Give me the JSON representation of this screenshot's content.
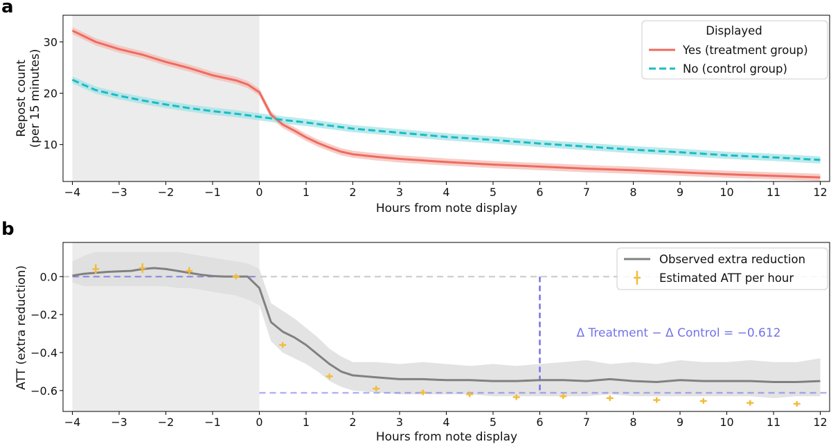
{
  "colors": {
    "treatment": "#ee6b5f",
    "treatment_band": "#f4bcb6",
    "control": "#18bcc4",
    "control_band": "#a6e3e5",
    "observed": "#808080",
    "observed_band": "#dedede",
    "estimate": "#f2bc3c",
    "reference": "#7272e8",
    "zero_line": "#c8c8c8",
    "pretreatment_shade": "#ececec"
  },
  "chart_data": [
    {
      "panel_label": "a",
      "type": "line",
      "xlabel": "Hours from note display",
      "ylabel": "Repost count",
      "ylabel_line2": "(per 15 minutes)",
      "xlim": [
        -4.2,
        12.2
      ],
      "ylim": [
        2.8,
        35.2
      ],
      "xticks": [
        -4,
        -3,
        -2,
        -1,
        0,
        1,
        2,
        3,
        4,
        5,
        6,
        7,
        8,
        9,
        10,
        11,
        12
      ],
      "xtick_labels": [
        "−4",
        "−3",
        "−2",
        "−1",
        "0",
        "1",
        "2",
        "3",
        "4",
        "5",
        "6",
        "7",
        "8",
        "9",
        "10",
        "11",
        "12"
      ],
      "yticks": [
        10,
        20,
        30
      ],
      "ytick_labels": [
        "10",
        "20",
        "30"
      ],
      "grid": false,
      "shaded_region": [
        -4,
        0
      ],
      "legend": {
        "title": "Displayed",
        "placement": "top-right",
        "entries": [
          "Yes (treatment group)",
          "No (control group)"
        ]
      },
      "series": [
        {
          "name": "Yes (treatment group)",
          "style": "solid",
          "x": [
            -4,
            -3.5,
            -3,
            -2.5,
            -2,
            -1.5,
            -1,
            -0.5,
            -0.25,
            0,
            0.25,
            0.5,
            0.75,
            1,
            1.25,
            1.5,
            1.75,
            2,
            2.5,
            3,
            3.5,
            4,
            5,
            6,
            7,
            8,
            9,
            10,
            11,
            12
          ],
          "y": [
            32.2,
            30.0,
            28.6,
            27.5,
            26.1,
            24.9,
            23.5,
            22.5,
            21.7,
            20.2,
            15.8,
            13.9,
            12.7,
            11.4,
            10.3,
            9.4,
            8.6,
            8.1,
            7.6,
            7.2,
            6.9,
            6.6,
            6.1,
            5.7,
            5.3,
            5.0,
            4.6,
            4.2,
            3.9,
            3.6
          ],
          "band_width": 1.4
        },
        {
          "name": "No (control group)",
          "style": "dashed",
          "x": [
            -4,
            -3.5,
            -3,
            -2.5,
            -2,
            -1.5,
            -1,
            -0.5,
            0,
            0.5,
            1,
            1.5,
            2,
            3,
            4,
            5,
            6,
            7,
            8,
            9,
            10,
            11,
            12
          ],
          "y": [
            22.6,
            20.6,
            19.5,
            18.6,
            17.8,
            17.1,
            16.5,
            16.0,
            15.4,
            14.8,
            14.3,
            13.7,
            13.1,
            12.3,
            11.5,
            10.9,
            10.2,
            9.6,
            9.0,
            8.5,
            7.9,
            7.5,
            7.0
          ],
          "band_width": 1.4
        }
      ]
    },
    {
      "panel_label": "b",
      "type": "line",
      "xlabel": "Hours from note display",
      "ylabel": "ATT (extra reduction)",
      "xlim": [
        -4.2,
        12.2
      ],
      "ylim": [
        -0.71,
        0.18
      ],
      "xticks": [
        -4,
        -3,
        -2,
        -1,
        0,
        1,
        2,
        3,
        4,
        5,
        6,
        7,
        8,
        9,
        10,
        11,
        12
      ],
      "xtick_labels": [
        "−4",
        "−3",
        "−2",
        "−1",
        "0",
        "1",
        "2",
        "3",
        "4",
        "5",
        "6",
        "7",
        "8",
        "9",
        "10",
        "11",
        "12"
      ],
      "yticks": [
        0.0,
        -0.2,
        -0.4,
        -0.6
      ],
      "ytick_labels": [
        "0.0",
        "−0.2",
        "−0.4",
        "−0.6"
      ],
      "grid": false,
      "shaded_region": [
        -4,
        0
      ],
      "legend": {
        "placement": "top-right",
        "entries": [
          "Observed extra reduction",
          "Estimated ATT per hour"
        ]
      },
      "annotation": {
        "text": "Δ Treatment − Δ Control = −0.612",
        "reference_line_y": -0.612,
        "vertical_line_x": 6,
        "vertical_line_range": [
          -0.612,
          0.0
        ]
      },
      "series": [
        {
          "name": "Observed extra reduction",
          "style": "solid",
          "x": [
            -4,
            -3.75,
            -3.5,
            -3.25,
            -3,
            -2.75,
            -2.5,
            -2.25,
            -2,
            -1.75,
            -1.5,
            -1.25,
            -1,
            -0.75,
            -0.5,
            -0.25,
            0,
            0.25,
            0.5,
            0.75,
            1,
            1.25,
            1.5,
            1.75,
            2,
            2.5,
            3,
            3.5,
            4,
            4.5,
            5,
            5.5,
            6,
            6.5,
            7,
            7.5,
            8,
            8.5,
            9,
            9.5,
            10,
            10.5,
            11,
            11.5,
            12
          ],
          "y": [
            0.005,
            0.015,
            0.02,
            0.025,
            0.028,
            0.03,
            0.04,
            0.045,
            0.04,
            0.03,
            0.02,
            0.01,
            0.003,
            0.0,
            0.0,
            0.0,
            -0.06,
            -0.24,
            -0.29,
            -0.32,
            -0.36,
            -0.41,
            -0.46,
            -0.5,
            -0.52,
            -0.53,
            -0.54,
            -0.54,
            -0.545,
            -0.545,
            -0.55,
            -0.55,
            -0.545,
            -0.545,
            -0.55,
            -0.54,
            -0.55,
            -0.555,
            -0.545,
            -0.55,
            -0.55,
            -0.55,
            -0.555,
            -0.555,
            -0.55
          ],
          "band_upper": [
            0.08,
            0.11,
            0.13,
            0.13,
            0.13,
            0.13,
            0.13,
            0.13,
            0.13,
            0.13,
            0.12,
            0.11,
            0.1,
            0.09,
            0.08,
            0.07,
            0.04,
            -0.14,
            -0.18,
            -0.22,
            -0.27,
            -0.32,
            -0.38,
            -0.42,
            -0.45,
            -0.45,
            -0.46,
            -0.45,
            -0.46,
            -0.47,
            -0.46,
            -0.47,
            -0.46,
            -0.45,
            -0.44,
            -0.46,
            -0.45,
            -0.46,
            -0.44,
            -0.45,
            -0.45,
            -0.44,
            -0.45,
            -0.45,
            -0.43
          ],
          "band_lower": [
            -0.03,
            -0.05,
            -0.05,
            -0.05,
            -0.05,
            -0.05,
            -0.05,
            -0.05,
            -0.05,
            -0.06,
            -0.06,
            -0.07,
            -0.08,
            -0.09,
            -0.1,
            -0.12,
            -0.15,
            -0.34,
            -0.4,
            -0.43,
            -0.46,
            -0.5,
            -0.55,
            -0.58,
            -0.6,
            -0.61,
            -0.62,
            -0.62,
            -0.62,
            -0.62,
            -0.63,
            -0.63,
            -0.63,
            -0.63,
            -0.63,
            -0.62,
            -0.63,
            -0.63,
            -0.63,
            -0.63,
            -0.63,
            -0.63,
            -0.64,
            -0.63,
            -0.63
          ]
        },
        {
          "name": "Estimated ATT per hour",
          "style": "errorbar",
          "x": [
            -3.5,
            -2.5,
            -1.5,
            -0.5,
            0.5,
            1.5,
            2.5,
            3.5,
            4.5,
            5.5,
            6.5,
            7.5,
            8.5,
            9.5,
            10.5,
            11.5
          ],
          "y": [
            0.04,
            0.045,
            0.03,
            0.0,
            -0.36,
            -0.525,
            -0.59,
            -0.61,
            -0.62,
            -0.635,
            -0.63,
            -0.64,
            -0.65,
            -0.655,
            -0.665,
            -0.67
          ],
          "yerr": [
            0.025,
            0.025,
            0.02,
            0.005,
            0.015,
            0.01,
            0.008,
            0.006,
            0.008,
            0.006,
            0.008,
            0.006,
            0.006,
            0.006,
            0.006,
            0.006
          ]
        }
      ]
    }
  ]
}
